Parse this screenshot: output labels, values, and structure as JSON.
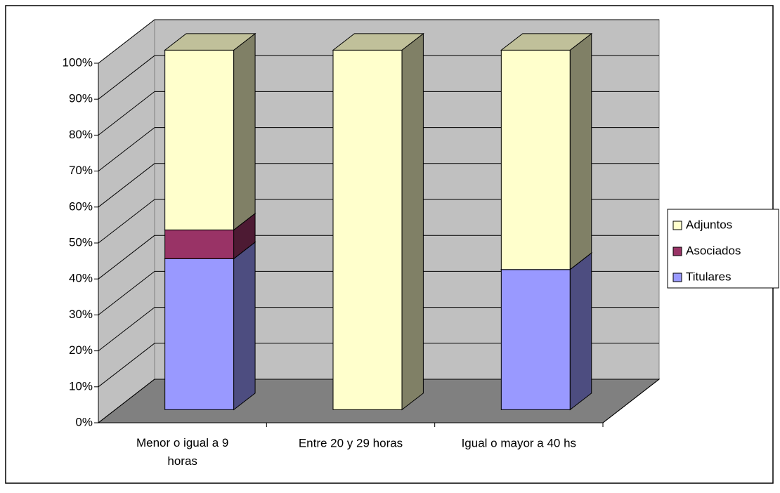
{
  "chart_data": {
    "type": "bar3d_stacked",
    "categories": [
      "Menor o igual a 9 horas",
      "Entre 20 y 29 horas",
      "Igual o mayor a 40 hs"
    ],
    "series": [
      {
        "name": "Titulares",
        "color": "#9999ff",
        "side": "#4d4d80",
        "values": [
          42,
          0,
          39
        ]
      },
      {
        "name": "Asociados",
        "color": "#993366",
        "side": "#4d1a33",
        "values": [
          8,
          0,
          0
        ]
      },
      {
        "name": "Adjuntos",
        "color": "#ffffcc",
        "side": "#808066",
        "values": [
          50,
          100,
          61
        ]
      }
    ],
    "ylim": [
      0,
      100
    ],
    "yticks": [
      {
        "value": 0,
        "label": "0%"
      },
      {
        "value": 10,
        "label": "10%"
      },
      {
        "value": 20,
        "label": "20%"
      },
      {
        "value": 30,
        "label": "30%"
      },
      {
        "value": 40,
        "label": "40%"
      },
      {
        "value": 50,
        "label": "50%"
      },
      {
        "value": 60,
        "label": "60%"
      },
      {
        "value": 70,
        "label": "70%"
      },
      {
        "value": 80,
        "label": "80%"
      },
      {
        "value": 90,
        "label": "90%"
      },
      {
        "value": 100,
        "label": "100%"
      }
    ],
    "grid": true,
    "legend": "right"
  }
}
